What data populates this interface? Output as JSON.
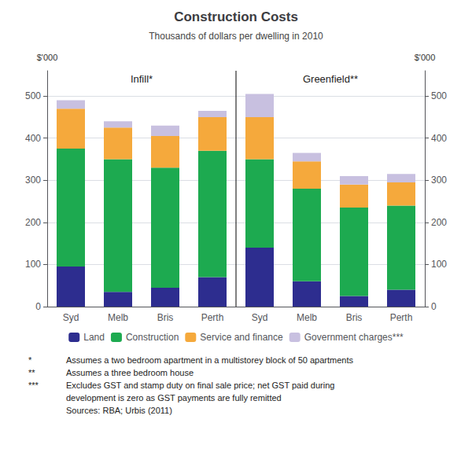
{
  "chart_data": {
    "type": "bar",
    "title": "Construction Costs",
    "subtitle": "Thousands of dollars per dwelling in 2010",
    "ylabel": "$'000",
    "y2label": "$'000",
    "categories": [
      "Syd",
      "Melb",
      "Bris",
      "Perth",
      "Syd",
      "Melb",
      "Bris",
      "Perth"
    ],
    "series": [
      {
        "name": "Land",
        "color": "#2D2D8F",
        "values": [
          95,
          35,
          45,
          70,
          140,
          60,
          25,
          40
        ]
      },
      {
        "name": "Construction",
        "color": "#1DAA50",
        "values": [
          280,
          315,
          285,
          300,
          210,
          220,
          210,
          200
        ]
      },
      {
        "name": "Service and finance",
        "color": "#F5A93C",
        "values": [
          95,
          75,
          75,
          80,
          100,
          65,
          55,
          55
        ]
      },
      {
        "name": "Government charges***",
        "color": "#C8C0E0",
        "values": [
          20,
          15,
          25,
          15,
          55,
          20,
          20,
          20
        ]
      }
    ],
    "stacked": true,
    "ylim": [
      0,
      560
    ],
    "yticks": [
      0,
      100,
      200,
      300,
      400,
      500
    ],
    "y2lim": [
      0,
      560
    ],
    "y2ticks": [
      0,
      100,
      200,
      300,
      400,
      500
    ],
    "grid": true,
    "legend": "bottom",
    "annotations": [
      "Infill*",
      "Greenfield**"
    ],
    "footnotes": [
      {
        "marker": "*",
        "text": "Assumes a two bedroom apartment in a multistorey block of 50 apartments"
      },
      {
        "marker": "**",
        "text": "Assumes a three bedroom house"
      },
      {
        "marker": "***",
        "text": "Excludes GST and stamp duty on final sale price; net GST paid during"
      },
      {
        "text": "development is zero as GST payments are fully remitted"
      },
      {
        "text": "Sources: RBA; Urbis (2011)"
      }
    ]
  }
}
